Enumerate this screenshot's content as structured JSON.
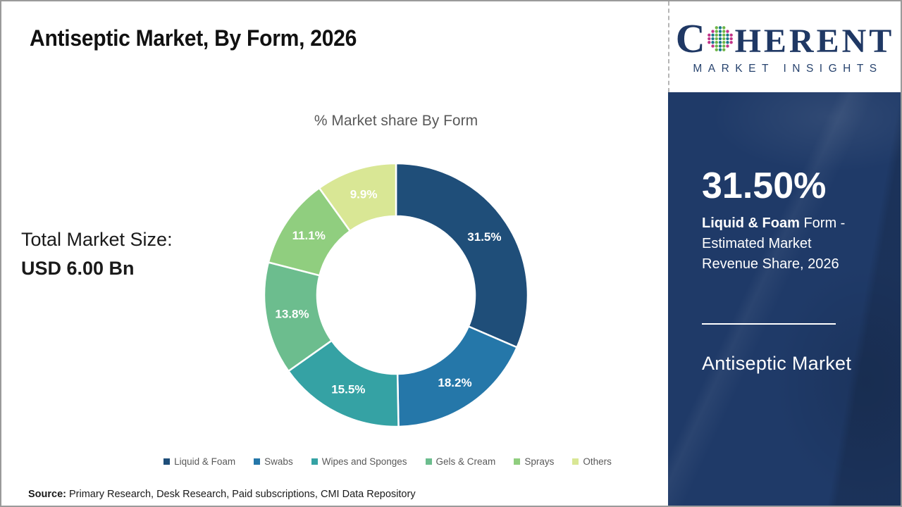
{
  "page_title": "Antiseptic Market, By Form, 2026",
  "chart_data": {
    "type": "pie",
    "subtype": "donut",
    "title": "% Market share By Form",
    "categories": [
      "Liquid & Foam",
      "Swabs",
      "Wipes and Sponges",
      "Gels & Cream",
      "Sprays",
      "Others"
    ],
    "values": [
      31.5,
      18.2,
      15.5,
      13.8,
      11.1,
      9.9
    ],
    "labels": [
      "31.5%",
      "18.2%",
      "15.5%",
      "13.8%",
      "11.1%",
      "9.9%"
    ],
    "colors": [
      "#1F4E79",
      "#2577A9",
      "#35A2A4",
      "#6CBD8E",
      "#90CE7F",
      "#D9E795"
    ],
    "start_angle_deg": 0,
    "direction": "clockwise",
    "inner_radius_ratio": 0.6,
    "legend_position": "bottom",
    "label_color": "#FFFFFF"
  },
  "totals": {
    "label": "Total Market Size:",
    "value": "USD 6.00 Bn"
  },
  "source": {
    "prefix": "Source:",
    "text": "Primary Research, Desk Research, Paid subscriptions, CMI Data Repository"
  },
  "sidebar": {
    "logo": {
      "brand_first_letter": "C",
      "brand_rest": "HERENT",
      "subtitle": "MARKET INSIGHTS",
      "navy": "#1F3864",
      "globe_colors": {
        "teal": "#1B7A8A",
        "green": "#6FB545",
        "magenta": "#C03489"
      }
    },
    "highlight": {
      "value": "31.50%",
      "desc_bold": "Liquid & Foam",
      "desc_rest": " Form - Estimated Market Revenue Share, 2026"
    },
    "market_name": "Antiseptic Market",
    "panel_color": "#1F3A68"
  }
}
